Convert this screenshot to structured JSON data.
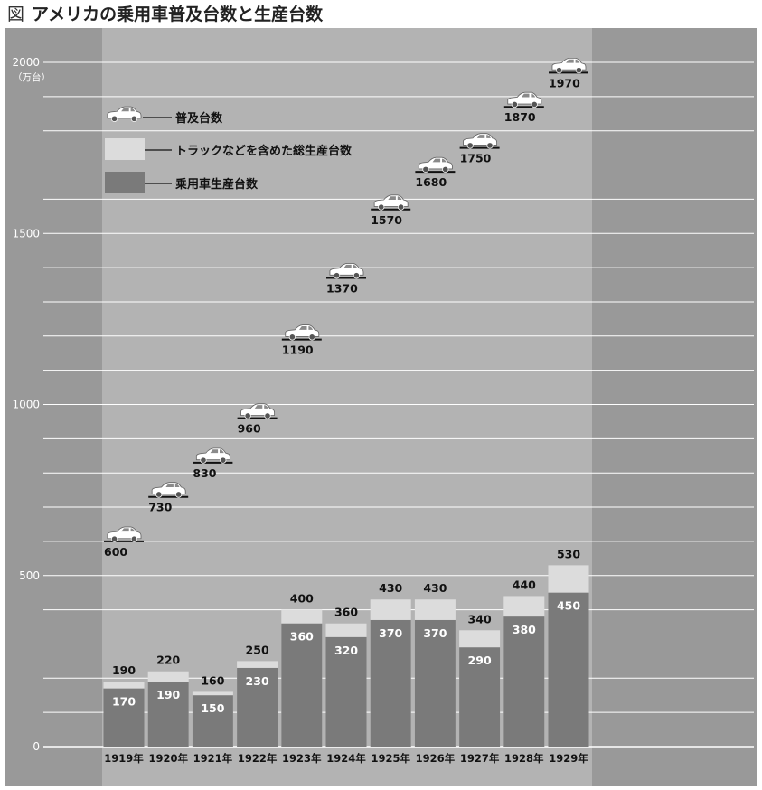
{
  "title": {
    "prefix": "図",
    "text": "アメリカの乗用車普及台数と生産台数"
  },
  "colors": {
    "panel_bg": "#999999",
    "band_bg": "#b3b3b3",
    "grid": "#ffffff",
    "total_bar": "#dcdcdc",
    "passenger_bar": "#7a7a7a",
    "text_dark": "#111111",
    "text_white": "#ffffff",
    "car_icon": "#ffffff"
  },
  "chart_data": {
    "type": "bar",
    "title": "アメリカの乗用車普及台数と生産台数",
    "unit_label": "（万台）",
    "categories": [
      "1919年",
      "1920年",
      "1921年",
      "1922年",
      "1923年",
      "1924年",
      "1925年",
      "1926年",
      "1927年",
      "1928年",
      "1929年"
    ],
    "ylim": [
      0,
      2000
    ],
    "yticks": [
      0,
      500,
      1000,
      1500,
      2000
    ],
    "grid": true,
    "legend_position": "top-left",
    "series": [
      {
        "name": "普及台数",
        "kind": "marker-car-icon",
        "values": [
          600,
          730,
          830,
          960,
          1190,
          1370,
          1570,
          1680,
          1750,
          1870,
          1970
        ]
      },
      {
        "name": "トラックなどを含めた総生産台数",
        "kind": "bar-light",
        "values": [
          190,
          220,
          160,
          250,
          400,
          360,
          430,
          430,
          340,
          440,
          530
        ]
      },
      {
        "name": "乗用車生産台数",
        "kind": "bar-dark",
        "values": [
          170,
          190,
          150,
          230,
          360,
          320,
          370,
          370,
          290,
          380,
          450
        ]
      }
    ]
  }
}
